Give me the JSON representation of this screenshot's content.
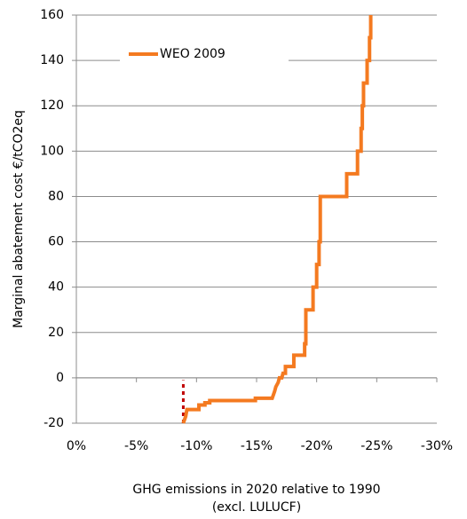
{
  "chart_data": {
    "type": "line",
    "ylabel": "Marginal abatement cost €/tCO2eq",
    "xlabel": [
      "GHG emissions in 2020 relative to 1990",
      "(excl. LULUCF)"
    ],
    "xlim": [
      0,
      -30
    ],
    "xticks": [
      {
        "value": 0,
        "label": "0%"
      },
      {
        "value": -5,
        "label": "-5%"
      },
      {
        "value": -10,
        "label": "-10%"
      },
      {
        "value": -15,
        "label": "-15%"
      },
      {
        "value": -20,
        "label": "-20%"
      },
      {
        "value": -25,
        "label": "-25%"
      },
      {
        "value": -30,
        "label": "-30%"
      }
    ],
    "ylim": [
      -20,
      160
    ],
    "yticks": [
      -20,
      0,
      20,
      40,
      60,
      80,
      100,
      120,
      140,
      160
    ],
    "grid": true,
    "legend": "upper-left",
    "series": [
      {
        "name": "WEO 2009",
        "color": "#f47a20",
        "x": [
          -8.9,
          -9.1,
          -9.2,
          -10.2,
          -10.2,
          -10.7,
          -10.7,
          -11.1,
          -11.1,
          -14.9,
          -14.9,
          -16.3,
          -16.5,
          -16.6,
          -16.8,
          -16.9,
          -17.1,
          -17.2,
          -17.4,
          -17.4,
          -18.1,
          -18.1,
          -19.0,
          -19.0,
          -19.1,
          -19.1,
          -19.7,
          -19.7,
          -20.0,
          -20.0,
          -20.2,
          -20.2,
          -20.3,
          -20.3,
          -22.5,
          -22.5,
          -23.4,
          -23.4,
          -23.7,
          -23.7,
          -23.8,
          -23.8,
          -23.9,
          -23.9,
          -24.2,
          -24.2,
          -24.4,
          -24.4,
          -24.5,
          -24.5
        ],
        "values": [
          -20,
          -17,
          -14,
          -14,
          -12,
          -12,
          -11,
          -11,
          -10,
          -10,
          -9,
          -9,
          -6,
          -4,
          -2,
          0,
          0,
          2,
          2,
          5,
          5,
          10,
          10,
          15,
          15,
          30,
          30,
          40,
          40,
          50,
          50,
          60,
          60,
          80,
          80,
          90,
          90,
          100,
          100,
          110,
          110,
          120,
          120,
          130,
          130,
          140,
          140,
          150,
          150,
          160
        ]
      }
    ],
    "reference_line": {
      "x": -8.9,
      "y": [
        -20,
        -1
      ],
      "color": "#c00000",
      "style": "dashed"
    }
  }
}
